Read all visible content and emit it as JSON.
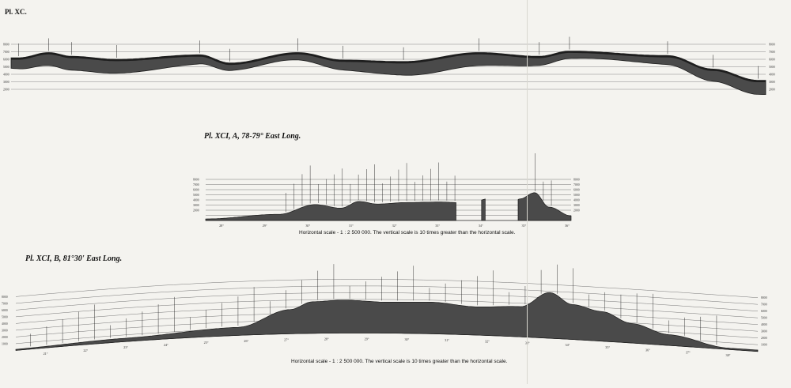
{
  "colors": {
    "paper": "#f4f3ef",
    "profile": "#4a4a4a",
    "cap": "#1e1e1e",
    "ink": "#111111"
  },
  "plate_label": "Pl. XC.",
  "panel_a": {
    "title": "Pl. XCI, A, 78-79° East Long.",
    "scale_note": "Horizontal scale - 1 : 2 500 000. The vertical scale is 10 times greater than the horizontal scale."
  },
  "panel_b": {
    "title": "Pl. XCI, B, 81°30' East Long.",
    "scale_note": "Horizontal scale - 1 : 2 500 000. The vertical scale is 10 times greater than the horizontal scale."
  },
  "chart_data": [
    {
      "id": "top",
      "type": "area",
      "ylim": [
        0,
        9000
      ],
      "y_ticks": [
        "8000",
        "7000",
        "6000",
        "5000",
        "4000",
        "3000",
        "2000"
      ],
      "peaks": [
        {
          "x": 0.01,
          "y": 6200
        },
        {
          "x": 0.05,
          "y": 6900
        },
        {
          "x": 0.08,
          "y": 6400
        },
        {
          "x": 0.14,
          "y": 6000
        },
        {
          "x": 0.25,
          "y": 6600
        },
        {
          "x": 0.29,
          "y": 5500
        },
        {
          "x": 0.38,
          "y": 6900
        },
        {
          "x": 0.44,
          "y": 5900
        },
        {
          "x": 0.52,
          "y": 5700
        },
        {
          "x": 0.62,
          "y": 6900
        },
        {
          "x": 0.7,
          "y": 6400
        },
        {
          "x": 0.74,
          "y": 7100
        },
        {
          "x": 0.87,
          "y": 6500
        },
        {
          "x": 0.93,
          "y": 4700
        },
        {
          "x": 0.99,
          "y": 3200
        }
      ]
    },
    {
      "id": "A",
      "type": "area",
      "ylim": [
        0,
        8000
      ],
      "y_ticks": [
        "8000",
        "7000",
        "6000",
        "5000",
        "4000",
        "3000",
        "2000"
      ],
      "x_ticks": [
        "28°",
        "29°",
        "30°",
        "31°",
        "32°",
        "33°",
        "34°",
        "35°",
        "36°"
      ],
      "peaks": [
        {
          "x": 0.0,
          "y": 300
        },
        {
          "x": 0.2,
          "y": 1200
        },
        {
          "x": 0.3,
          "y": 3100
        },
        {
          "x": 0.37,
          "y": 2400
        },
        {
          "x": 0.42,
          "y": 3700
        },
        {
          "x": 0.47,
          "y": 3200
        },
        {
          "x": 0.55,
          "y": 3500
        },
        {
          "x": 0.64,
          "y": 3600
        },
        {
          "x": 0.72,
          "y": 3400
        },
        {
          "x": 0.78,
          "y": 4300
        },
        {
          "x": 0.8,
          "y": 3000
        },
        {
          "x": 0.84,
          "y": 3300
        },
        {
          "x": 0.86,
          "y": 4200
        },
        {
          "x": 0.9,
          "y": 5400
        },
        {
          "x": 0.94,
          "y": 2600
        },
        {
          "x": 1.0,
          "y": 900
        }
      ]
    },
    {
      "id": "B",
      "type": "area",
      "ylim": [
        0,
        8000
      ],
      "y_ticks": [
        "8000",
        "7000",
        "6000",
        "5000",
        "4000",
        "3000",
        "2000",
        "1000"
      ],
      "x_ticks": [
        "21°",
        "22°",
        "23°",
        "24°",
        "25°",
        "26°",
        "27°",
        "28°",
        "29°",
        "30°",
        "31°",
        "32°",
        "33°",
        "34°",
        "35°",
        "36°",
        "37°",
        "38°"
      ],
      "peaks": [
        {
          "x": 0.0,
          "y": 150
        },
        {
          "x": 0.15,
          "y": 500
        },
        {
          "x": 0.3,
          "y": 1200
        },
        {
          "x": 0.37,
          "y": 3600
        },
        {
          "x": 0.4,
          "y": 4700
        },
        {
          "x": 0.44,
          "y": 4900
        },
        {
          "x": 0.5,
          "y": 4600
        },
        {
          "x": 0.56,
          "y": 4700
        },
        {
          "x": 0.62,
          "y": 4200
        },
        {
          "x": 0.68,
          "y": 4500
        },
        {
          "x": 0.72,
          "y": 6800
        },
        {
          "x": 0.75,
          "y": 5200
        },
        {
          "x": 0.79,
          "y": 4400
        },
        {
          "x": 0.83,
          "y": 2900
        },
        {
          "x": 0.88,
          "y": 1600
        },
        {
          "x": 0.96,
          "y": 200
        }
      ]
    }
  ]
}
